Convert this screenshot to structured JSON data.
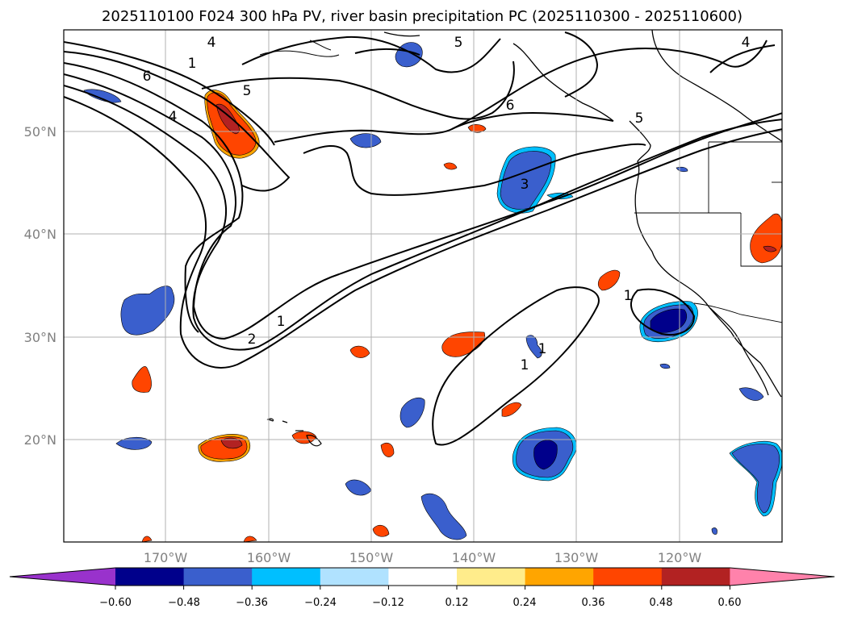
{
  "title": "2025110100 F024 300 hPa PV, river basin precipitation PC (2025110300 - 2025110600)",
  "lat_ticks": [
    "50°N",
    "40°N",
    "30°N",
    "20°N"
  ],
  "lon_ticks": [
    "170°W",
    "160°W",
    "150°W",
    "140°W",
    "130°W",
    "120°W"
  ],
  "colorbar": {
    "tick_labels": [
      "−0.60",
      "−0.48",
      "−0.36",
      "−0.24",
      "−0.12",
      "0.12",
      "0.24",
      "0.36",
      "0.48",
      "0.60"
    ],
    "colors": [
      "#9932cc",
      "#00008b",
      "#3a5fcd",
      "#00bfff",
      "#b0e2ff",
      "#ffffff",
      "#ffec8b",
      "#ffa500",
      "#ff4500",
      "#b22222",
      "#ff82ab"
    ]
  },
  "pv_contour_labels": [
    "4",
    "1",
    "6",
    "4",
    "5",
    "6",
    "5",
    "3",
    "5",
    "4",
    "2",
    "1",
    "1",
    "1",
    "1"
  ],
  "map": {
    "grid": true,
    "lon_range": [
      "180°W",
      "110°W"
    ],
    "lat_range": [
      "10°N",
      "60°N"
    ]
  }
}
